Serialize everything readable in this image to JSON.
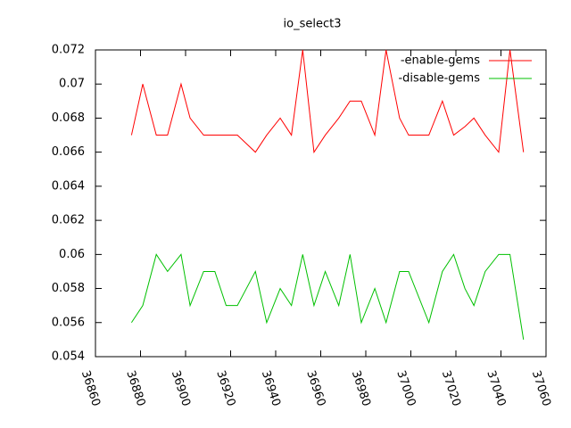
{
  "chart_data": {
    "type": "line",
    "title": "io_select3",
    "x": [
      36876,
      36881,
      36887,
      36892,
      36898,
      36902,
      36908,
      36913,
      36918,
      36923,
      36927,
      36931,
      36936,
      36942,
      36947,
      36952,
      36957,
      36962,
      36968,
      36973,
      36978,
      36984,
      36989,
      36995,
      36999,
      37008,
      37014,
      37019,
      37024,
      37028,
      37033,
      37039,
      37044,
      37050
    ],
    "series": [
      {
        "name": "-enable-gems",
        "color": "#ff0000",
        "values": [
          0.067,
          0.07,
          0.067,
          0.067,
          0.07,
          0.068,
          0.067,
          0.067,
          0.067,
          0.067,
          0.0665,
          0.066,
          0.067,
          0.068,
          0.067,
          0.072,
          0.066,
          0.067,
          0.068,
          0.069,
          0.069,
          0.067,
          0.072,
          0.068,
          0.067,
          0.067,
          0.069,
          0.067,
          0.0675,
          0.068,
          0.067,
          0.066,
          0.072,
          0.066
        ]
      },
      {
        "name": "-disable-gems",
        "color": "#00c000",
        "values": [
          0.056,
          0.057,
          0.06,
          0.059,
          0.06,
          0.057,
          0.059,
          0.059,
          0.057,
          0.057,
          0.058,
          0.059,
          0.056,
          0.058,
          0.057,
          0.06,
          0.057,
          0.059,
          0.057,
          0.06,
          0.056,
          0.058,
          0.056,
          0.059,
          0.059,
          0.056,
          0.059,
          0.06,
          0.058,
          0.057,
          0.059,
          0.06,
          0.06,
          0.055
        ]
      }
    ],
    "xlim": [
      36860,
      37060
    ],
    "xticks": [
      36860,
      36880,
      36900,
      36920,
      36940,
      36960,
      36980,
      37000,
      37020,
      37040,
      37060
    ],
    "ylim": [
      0.054,
      0.072
    ],
    "yticks": [
      0.054,
      0.056,
      0.058,
      0.06,
      0.062,
      0.064,
      0.066,
      0.068,
      0.07,
      0.072
    ],
    "legend": "top-right"
  }
}
